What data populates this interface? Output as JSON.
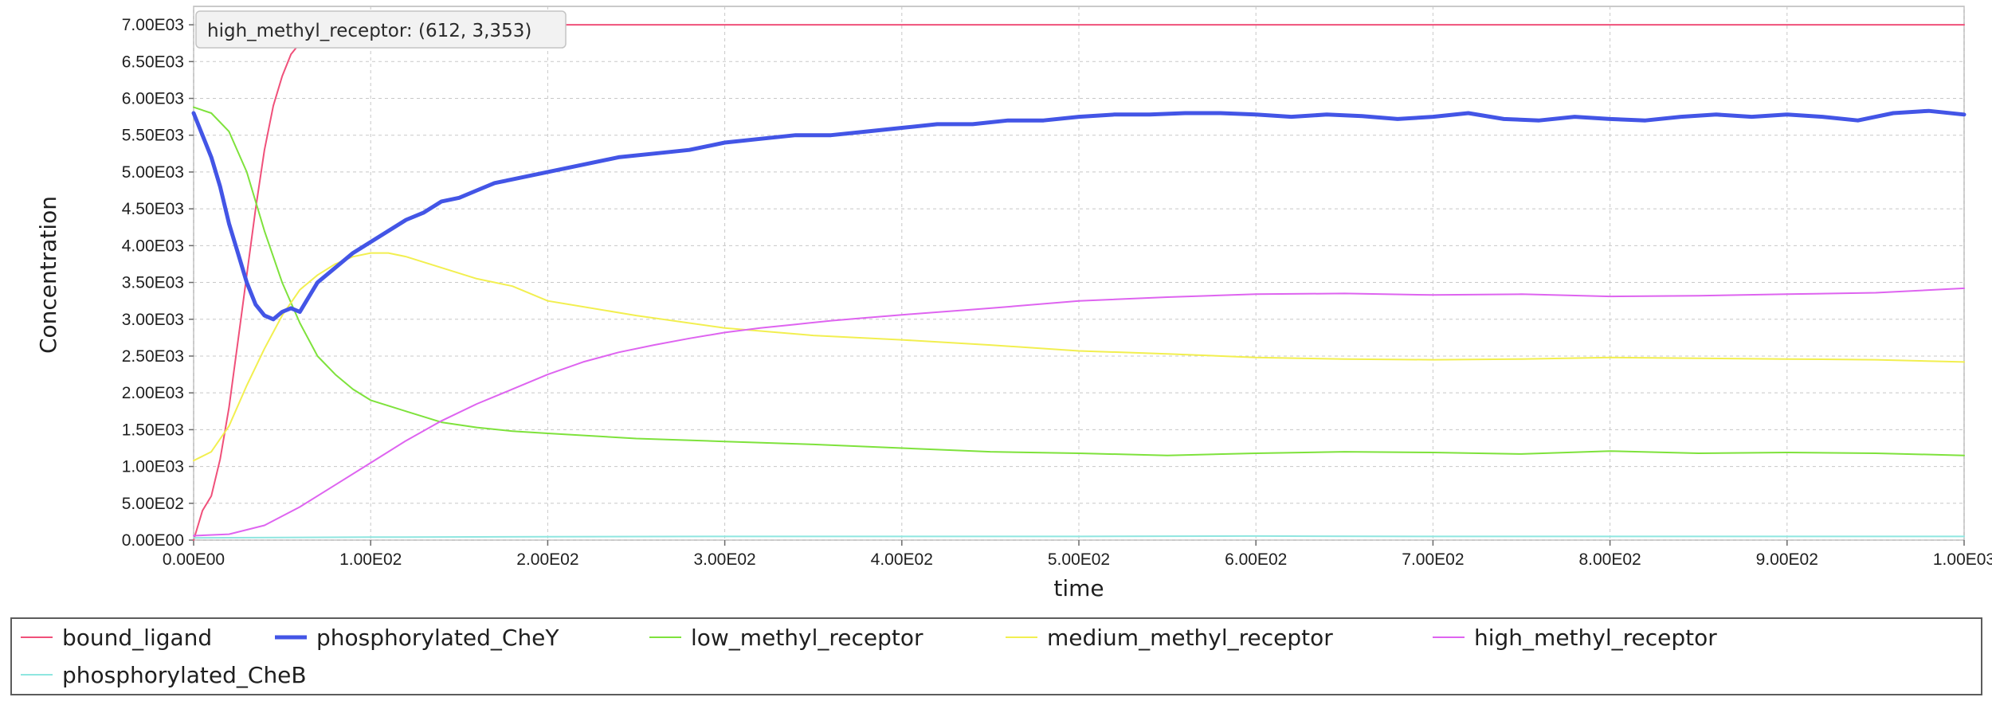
{
  "tooltip": {
    "text": "high_methyl_receptor: (612, 3,353)"
  },
  "chart_data": {
    "type": "line",
    "title": "",
    "xlabel": "time",
    "ylabel": "Concentration",
    "xlim": [
      0,
      1000
    ],
    "ylim": [
      0,
      7250
    ],
    "grid": true,
    "legend_position": "bottom",
    "x_tick_values": [
      0,
      100,
      200,
      300,
      400,
      500,
      600,
      700,
      800,
      900,
      1000
    ],
    "x_tick_labels": [
      "0.00E00",
      "1.00E02",
      "2.00E02",
      "3.00E02",
      "4.00E02",
      "5.00E02",
      "6.00E02",
      "7.00E02",
      "8.00E02",
      "9.00E02",
      "1.00E03"
    ],
    "y_tick_values": [
      0,
      500,
      1000,
      1500,
      2000,
      2500,
      3000,
      3500,
      4000,
      4500,
      5000,
      5500,
      6000,
      6500,
      7000
    ],
    "y_tick_labels": [
      "0.00E00",
      "5.00E02",
      "1.00E03",
      "1.50E03",
      "2.00E03",
      "2.50E03",
      "3.00E03",
      "3.50E03",
      "4.00E03",
      "4.50E03",
      "5.00E03",
      "5.50E03",
      "6.00E03",
      "6.50E03",
      "7.00E03"
    ],
    "series": [
      {
        "name": "bound_ligand",
        "color": "#f0507a",
        "width": 2,
        "x": [
          0,
          5,
          10,
          15,
          20,
          25,
          30,
          35,
          40,
          45,
          50,
          55,
          60,
          65,
          70,
          75,
          80,
          90,
          100,
          150,
          200,
          300,
          400,
          500,
          600,
          700,
          800,
          900,
          1000
        ],
        "y": [
          0,
          400,
          600,
          1100,
          1800,
          2700,
          3600,
          4500,
          5300,
          5900,
          6300,
          6600,
          6750,
          6900,
          6980,
          7000,
          7000,
          7000,
          7000,
          7000,
          7000,
          7000,
          7000,
          7000,
          7000,
          7000,
          7000,
          7000,
          7000
        ]
      },
      {
        "name": "phosphorylated_CheY",
        "color": "#4355e6",
        "width": 5,
        "x": [
          0,
          5,
          10,
          15,
          20,
          25,
          30,
          35,
          40,
          45,
          50,
          55,
          60,
          65,
          70,
          80,
          90,
          100,
          110,
          120,
          130,
          140,
          150,
          160,
          170,
          180,
          190,
          200,
          220,
          240,
          260,
          280,
          300,
          320,
          340,
          360,
          380,
          400,
          420,
          440,
          460,
          480,
          500,
          520,
          540,
          560,
          580,
          600,
          620,
          640,
          660,
          680,
          700,
          720,
          740,
          760,
          780,
          800,
          820,
          840,
          860,
          880,
          900,
          920,
          940,
          960,
          980,
          1000
        ],
        "y": [
          5800,
          5500,
          5200,
          4800,
          4300,
          3900,
          3500,
          3200,
          3050,
          3000,
          3100,
          3150,
          3100,
          3300,
          3500,
          3700,
          3900,
          4050,
          4200,
          4350,
          4450,
          4600,
          4650,
          4750,
          4850,
          4900,
          4950,
          5000,
          5100,
          5200,
          5250,
          5300,
          5400,
          5450,
          5500,
          5500,
          5550,
          5600,
          5650,
          5650,
          5700,
          5700,
          5750,
          5780,
          5780,
          5800,
          5800,
          5780,
          5750,
          5780,
          5760,
          5720,
          5750,
          5800,
          5720,
          5700,
          5750,
          5720,
          5700,
          5750,
          5780,
          5750,
          5780,
          5750,
          5700,
          5800,
          5830,
          5780
        ]
      },
      {
        "name": "low_methyl_receptor",
        "color": "#7ee23c",
        "width": 2,
        "x": [
          0,
          10,
          20,
          30,
          40,
          50,
          60,
          70,
          80,
          90,
          100,
          120,
          140,
          160,
          180,
          200,
          250,
          300,
          350,
          400,
          450,
          500,
          550,
          600,
          650,
          700,
          750,
          800,
          850,
          900,
          950,
          1000
        ],
        "y": [
          5880,
          5800,
          5550,
          5000,
          4200,
          3500,
          2950,
          2500,
          2250,
          2050,
          1900,
          1750,
          1600,
          1530,
          1480,
          1450,
          1380,
          1340,
          1300,
          1250,
          1200,
          1180,
          1150,
          1180,
          1200,
          1190,
          1170,
          1210,
          1180,
          1190,
          1180,
          1150
        ]
      },
      {
        "name": "medium_methyl_receptor",
        "color": "#f2ef50",
        "width": 2,
        "x": [
          0,
          10,
          20,
          30,
          40,
          50,
          60,
          70,
          80,
          90,
          100,
          110,
          120,
          140,
          160,
          180,
          200,
          250,
          300,
          350,
          400,
          450,
          500,
          550,
          600,
          650,
          700,
          750,
          800,
          850,
          900,
          950,
          1000
        ],
        "y": [
          1080,
          1200,
          1550,
          2100,
          2600,
          3050,
          3400,
          3600,
          3750,
          3850,
          3900,
          3900,
          3850,
          3700,
          3550,
          3450,
          3250,
          3050,
          2880,
          2780,
          2720,
          2650,
          2570,
          2530,
          2480,
          2460,
          2450,
          2460,
          2480,
          2470,
          2460,
          2450,
          2420
        ]
      },
      {
        "name": "high_methyl_receptor",
        "color": "#de64f0",
        "width": 2,
        "x": [
          0,
          20,
          40,
          60,
          80,
          100,
          120,
          140,
          160,
          180,
          200,
          220,
          240,
          260,
          280,
          300,
          320,
          340,
          360,
          380,
          400,
          450,
          500,
          550,
          600,
          650,
          700,
          750,
          800,
          850,
          900,
          950,
          1000
        ],
        "y": [
          60,
          80,
          200,
          450,
          750,
          1050,
          1350,
          1620,
          1850,
          2050,
          2250,
          2420,
          2550,
          2650,
          2740,
          2820,
          2880,
          2930,
          2980,
          3020,
          3060,
          3150,
          3250,
          3300,
          3340,
          3350,
          3330,
          3340,
          3310,
          3320,
          3340,
          3360,
          3420
        ]
      },
      {
        "name": "phosphorylated_CheB",
        "color": "#8fe6e0",
        "width": 2,
        "x": [
          0,
          100,
          200,
          300,
          400,
          500,
          600,
          700,
          800,
          900,
          1000
        ],
        "y": [
          30,
          40,
          45,
          50,
          50,
          50,
          55,
          50,
          50,
          50,
          50
        ]
      }
    ]
  }
}
